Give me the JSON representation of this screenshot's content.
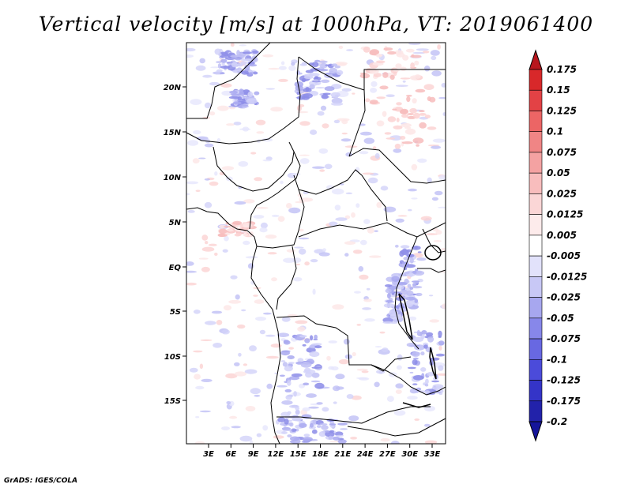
{
  "title": "Vertical velocity [m/s] at 1000hPa, VT: 2019061400",
  "credit": "GrADS: IGES/COLA",
  "map": {
    "lat_labels": [
      "20N",
      "15N",
      "10N",
      "5N",
      "EQ",
      "5S",
      "10S",
      "15S"
    ],
    "lon_labels": [
      "3E",
      "6E",
      "9E",
      "12E",
      "15E",
      "18E",
      "21E",
      "24E",
      "27E",
      "30E",
      "33E"
    ]
  },
  "colorbar": {
    "labels": [
      "0.175",
      "0.15",
      "0.125",
      "0.1",
      "0.075",
      "0.05",
      "0.025",
      "0.0125",
      "0.005",
      "-0.005",
      "-0.0125",
      "-0.025",
      "-0.05",
      "-0.075",
      "-0.1",
      "-0.125",
      "-0.175",
      "-0.2"
    ],
    "colors": [
      "#b8161d",
      "#d8282a",
      "#e34245",
      "#ec6565",
      "#f08585",
      "#f4a2a2",
      "#f8bdbd",
      "#fbd6d6",
      "#fdebeb",
      "#ffffff",
      "#e2e2fb",
      "#c8c8f6",
      "#a7a7ef",
      "#8787ea",
      "#6868e2",
      "#4b4bda",
      "#3434c8",
      "#2222aa",
      "#15159a"
    ]
  }
}
